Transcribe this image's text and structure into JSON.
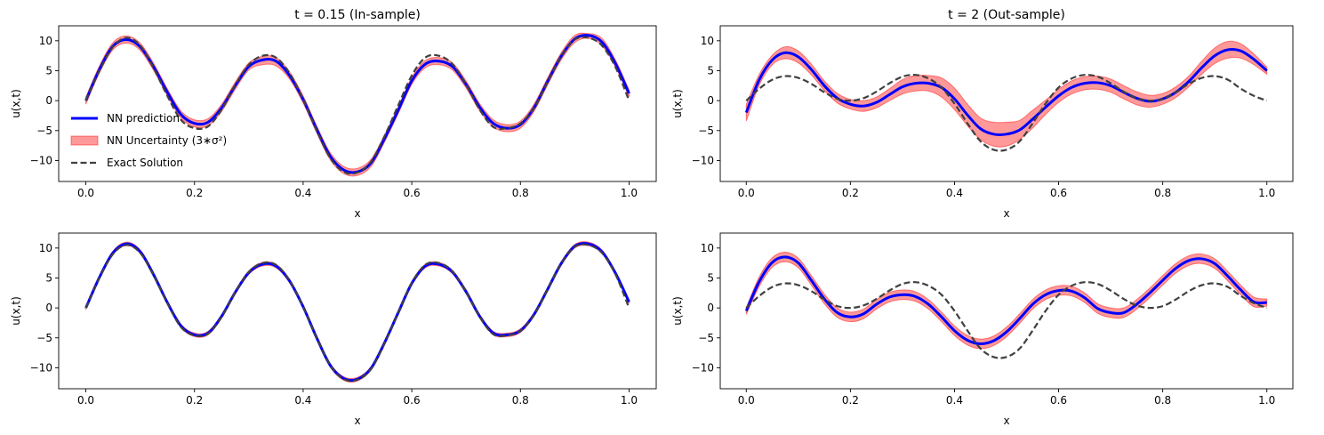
{
  "chart_data": [
    {
      "type": "line",
      "title": "t = 0.15 (In-sample)",
      "xlabel": "x",
      "ylabel": "u(x,t)",
      "xlim": [
        -0.05,
        1.05
      ],
      "ylim": [
        -13.5,
        12.5
      ],
      "xticks": [
        "0.0",
        "0.2",
        "0.4",
        "0.6",
        "0.8",
        "1.0"
      ],
      "yticks": [
        "10",
        "5",
        "0",
        "−5",
        "−10"
      ],
      "legend": {
        "placement": "lower-left",
        "entries": [
          {
            "label": "NN prediction",
            "style": "line",
            "color": "#0000ff"
          },
          {
            "label": "NN Uncertainty ($3*\\sigma^2$)",
            "display": "NN Uncertainty (3∗σ²)",
            "style": "band",
            "color": "#ff0000"
          },
          {
            "label": "Exact Solution",
            "style": "dashed",
            "color": "#404040"
          }
        ]
      },
      "x": [
        0.0,
        0.025,
        0.05,
        0.075,
        0.1,
        0.125,
        0.15,
        0.175,
        0.2,
        0.225,
        0.25,
        0.275,
        0.3,
        0.325,
        0.35,
        0.375,
        0.4,
        0.425,
        0.45,
        0.475,
        0.5,
        0.525,
        0.55,
        0.575,
        0.6,
        0.625,
        0.65,
        0.675,
        0.7,
        0.725,
        0.75,
        0.775,
        0.8,
        0.825,
        0.85,
        0.875,
        0.9,
        0.925,
        0.95,
        0.975,
        1.0
      ],
      "series": [
        {
          "name": "NN prediction",
          "kind": "line",
          "color": "#0000ff",
          "values": [
            0.0,
            5.2,
            9.1,
            10.2,
            9.0,
            5.6,
            1.4,
            -2.3,
            -3.8,
            -3.6,
            -1.2,
            2.5,
            5.7,
            6.8,
            6.6,
            4.2,
            0.2,
            -4.8,
            -9.3,
            -11.6,
            -11.9,
            -10.4,
            -6.3,
            -1.6,
            3.3,
            6.1,
            6.6,
            5.7,
            2.7,
            -1.1,
            -3.8,
            -4.6,
            -4.0,
            -1.2,
            3.2,
            7.4,
            10.3,
            10.9,
            9.8,
            6.2,
            1.2
          ]
        },
        {
          "name": "NN Uncertainty ($3*\\sigma^2$)",
          "kind": "band",
          "color": "#ff0000",
          "lower": [
            -0.6,
            4.6,
            8.5,
            9.6,
            8.4,
            5.0,
            0.8,
            -2.9,
            -4.4,
            -4.2,
            -1.8,
            1.9,
            5.1,
            6.0,
            5.8,
            3.6,
            -0.4,
            -5.4,
            -9.9,
            -12.2,
            -12.5,
            -11.0,
            -6.9,
            -2.2,
            2.7,
            5.5,
            6.0,
            5.1,
            2.1,
            -1.7,
            -4.4,
            -5.2,
            -4.6,
            -1.8,
            2.6,
            6.8,
            9.7,
            10.4,
            9.2,
            5.6,
            0.6
          ],
          "upper": [
            0.6,
            5.8,
            9.7,
            10.8,
            9.6,
            6.2,
            2.0,
            -1.7,
            -3.2,
            -3.0,
            -0.6,
            3.1,
            6.3,
            7.4,
            7.2,
            4.8,
            0.8,
            -4.2,
            -8.7,
            -11.0,
            -11.3,
            -9.8,
            -5.7,
            -1.0,
            3.9,
            6.7,
            7.2,
            6.3,
            3.3,
            -0.5,
            -3.2,
            -4.0,
            -3.4,
            -0.6,
            3.8,
            8.0,
            10.9,
            11.2,
            10.4,
            6.8,
            1.8
          ]
        },
        {
          "name": "Exact Solution",
          "kind": "dashed",
          "color": "#404040",
          "values": [
            0.0,
            5.0,
            9.0,
            10.5,
            9.2,
            5.4,
            0.8,
            -3.2,
            -4.6,
            -4.3,
            -1.5,
            2.6,
            6.0,
            7.5,
            7.2,
            4.6,
            0.2,
            -5.0,
            -9.6,
            -11.9,
            -12.0,
            -10.2,
            -5.9,
            -0.8,
            4.2,
            7.2,
            7.5,
            6.1,
            2.7,
            -1.5,
            -4.4,
            -4.6,
            -3.8,
            -1.2,
            3.1,
            7.4,
            10.2,
            10.5,
            9.2,
            5.6,
            0.0
          ]
        }
      ]
    },
    {
      "type": "line",
      "title": "t = 2 (Out-sample)",
      "xlabel": "x",
      "ylabel": "u(x,t)",
      "xlim": [
        -0.05,
        1.05
      ],
      "ylim": [
        -13.5,
        12.5
      ],
      "xticks": [
        "0.0",
        "0.2",
        "0.4",
        "0.6",
        "0.8",
        "1.0"
      ],
      "yticks": [
        "10",
        "5",
        "0",
        "−5",
        "−10"
      ],
      "x": [
        0.0,
        0.025,
        0.05,
        0.075,
        0.1,
        0.125,
        0.15,
        0.175,
        0.2,
        0.225,
        0.25,
        0.275,
        0.3,
        0.325,
        0.35,
        0.375,
        0.4,
        0.425,
        0.45,
        0.475,
        0.5,
        0.525,
        0.55,
        0.575,
        0.6,
        0.625,
        0.65,
        0.675,
        0.7,
        0.725,
        0.75,
        0.775,
        0.8,
        0.825,
        0.85,
        0.875,
        0.9,
        0.925,
        0.95,
        0.975,
        1.0
      ],
      "series": [
        {
          "name": "NN prediction",
          "kind": "line",
          "color": "#0000ff",
          "values": [
            -2.0,
            3.5,
            6.8,
            8.0,
            7.3,
            5.2,
            2.5,
            0.4,
            -0.6,
            -0.9,
            -0.3,
            1.0,
            2.3,
            2.9,
            2.9,
            2.2,
            0.3,
            -2.4,
            -4.7,
            -5.6,
            -5.6,
            -4.9,
            -3.1,
            -1.1,
            0.8,
            2.2,
            2.9,
            3.0,
            2.5,
            1.4,
            0.4,
            -0.1,
            0.3,
            1.4,
            3.2,
            5.5,
            7.5,
            8.5,
            8.3,
            6.9,
            5.0
          ]
        },
        {
          "name": "NN Uncertainty ($3*\\sigma^2$)",
          "kind": "band",
          "color": "#ff0000",
          "lower": [
            -3.4,
            2.6,
            6.0,
            7.0,
            6.3,
            4.3,
            1.7,
            -0.4,
            -1.4,
            -1.8,
            -1.2,
            0.0,
            1.1,
            1.6,
            1.6,
            0.6,
            -1.5,
            -4.2,
            -6.5,
            -7.6,
            -7.6,
            -6.5,
            -4.6,
            -2.3,
            -0.3,
            1.1,
            1.8,
            1.9,
            1.4,
            0.3,
            -0.7,
            -1.1,
            -0.6,
            0.5,
            2.3,
            4.4,
            6.2,
            7.1,
            7.1,
            6.0,
            4.4
          ],
          "upper": [
            -0.6,
            4.4,
            7.6,
            9.0,
            8.3,
            6.1,
            3.3,
            1.2,
            0.2,
            0.0,
            0.6,
            2.0,
            3.5,
            4.2,
            4.2,
            3.8,
            2.1,
            -0.6,
            -2.9,
            -3.6,
            -3.6,
            -3.3,
            -1.6,
            0.1,
            1.9,
            3.3,
            4.0,
            4.1,
            3.6,
            2.5,
            1.5,
            0.9,
            1.2,
            2.3,
            4.1,
            6.6,
            8.8,
            9.9,
            9.5,
            7.8,
            5.6
          ]
        },
        {
          "name": "Exact Solution",
          "kind": "dashed",
          "color": "#404040",
          "values": [
            0.0,
            2.0,
            3.5,
            4.1,
            3.8,
            2.8,
            1.4,
            0.3,
            0.0,
            0.4,
            1.5,
            2.9,
            4.0,
            4.3,
            3.7,
            2.2,
            -0.5,
            -3.8,
            -6.8,
            -8.2,
            -8.2,
            -6.8,
            -3.8,
            -0.5,
            2.2,
            3.7,
            4.3,
            4.0,
            2.9,
            1.5,
            0.4,
            0.0,
            0.3,
            1.4,
            2.8,
            3.8,
            4.1,
            3.5,
            2.0,
            0.8,
            0.0
          ]
        }
      ]
    },
    {
      "type": "line",
      "title": "",
      "xlabel": "x",
      "ylabel": "u(x,t)",
      "xlim": [
        -0.05,
        1.05
      ],
      "ylim": [
        -13.5,
        12.5
      ],
      "xticks": [
        "0.0",
        "0.2",
        "0.4",
        "0.6",
        "0.8",
        "1.0"
      ],
      "yticks": [
        "10",
        "5",
        "0",
        "−5",
        "−10"
      ],
      "x": [
        0.0,
        0.025,
        0.05,
        0.075,
        0.1,
        0.125,
        0.15,
        0.175,
        0.2,
        0.225,
        0.25,
        0.275,
        0.3,
        0.325,
        0.35,
        0.375,
        0.4,
        0.425,
        0.45,
        0.475,
        0.5,
        0.525,
        0.55,
        0.575,
        0.6,
        0.625,
        0.65,
        0.675,
        0.7,
        0.725,
        0.75,
        0.775,
        0.8,
        0.825,
        0.85,
        0.875,
        0.9,
        0.925,
        0.95,
        0.975,
        1.0
      ],
      "series": [
        {
          "name": "NN prediction",
          "kind": "line",
          "color": "#0000ff",
          "values": [
            0.0,
            5.1,
            9.2,
            10.7,
            9.4,
            5.5,
            0.9,
            -3.0,
            -4.5,
            -4.2,
            -1.4,
            2.6,
            5.9,
            7.3,
            7.0,
            4.5,
            0.2,
            -5.0,
            -9.6,
            -11.8,
            -11.9,
            -10.1,
            -5.8,
            -0.8,
            4.1,
            7.0,
            7.3,
            6.0,
            2.7,
            -1.4,
            -4.2,
            -4.5,
            -3.8,
            -1.1,
            3.1,
            7.4,
            10.3,
            10.7,
            9.4,
            5.8,
            1.0
          ]
        },
        {
          "name": "NN Uncertainty ($3*\\sigma^2$)",
          "kind": "band",
          "color": "#ff0000",
          "lower": [
            -0.3,
            4.8,
            8.9,
            10.4,
            9.1,
            5.2,
            0.6,
            -3.3,
            -4.8,
            -4.5,
            -1.7,
            2.3,
            5.6,
            7.0,
            6.7,
            4.2,
            -0.1,
            -5.3,
            -9.9,
            -12.1,
            -12.2,
            -10.4,
            -6.1,
            -1.1,
            3.8,
            6.7,
            7.0,
            5.7,
            2.4,
            -1.7,
            -4.5,
            -4.8,
            -4.1,
            -1.4,
            2.8,
            7.1,
            10.0,
            10.4,
            9.1,
            5.5,
            0.7
          ],
          "upper": [
            0.3,
            5.4,
            9.5,
            11.0,
            9.7,
            5.8,
            1.2,
            -2.7,
            -4.2,
            -3.9,
            -1.1,
            2.9,
            6.2,
            7.6,
            7.3,
            4.8,
            0.5,
            -4.7,
            -9.3,
            -11.5,
            -11.6,
            -9.8,
            -5.5,
            -0.5,
            4.4,
            7.3,
            7.6,
            6.3,
            3.0,
            -1.1,
            -3.9,
            -4.2,
            -3.5,
            -0.8,
            3.4,
            7.7,
            10.6,
            11.0,
            9.7,
            6.1,
            1.3
          ]
        },
        {
          "name": "Exact Solution",
          "kind": "dashed",
          "color": "#404040",
          "values": [
            0.0,
            5.0,
            9.0,
            10.5,
            9.2,
            5.4,
            0.8,
            -3.2,
            -4.6,
            -4.3,
            -1.5,
            2.6,
            6.0,
            7.5,
            7.2,
            4.6,
            0.2,
            -5.0,
            -9.6,
            -11.9,
            -12.0,
            -10.2,
            -5.9,
            -0.8,
            4.2,
            7.2,
            7.5,
            6.1,
            2.7,
            -1.5,
            -4.4,
            -4.6,
            -3.8,
            -1.2,
            3.1,
            7.4,
            10.2,
            10.5,
            9.2,
            5.6,
            0.0
          ]
        }
      ]
    },
    {
      "type": "line",
      "title": "",
      "xlabel": "x",
      "ylabel": "u(x,t)",
      "xlim": [
        -0.05,
        1.05
      ],
      "ylim": [
        -13.5,
        12.5
      ],
      "xticks": [
        "0.0",
        "0.2",
        "0.4",
        "0.6",
        "0.8",
        "1.0"
      ],
      "yticks": [
        "10",
        "5",
        "0",
        "−5",
        "−10"
      ],
      "x": [
        0.0,
        0.025,
        0.05,
        0.075,
        0.1,
        0.125,
        0.15,
        0.175,
        0.2,
        0.225,
        0.25,
        0.275,
        0.3,
        0.325,
        0.35,
        0.375,
        0.4,
        0.425,
        0.45,
        0.475,
        0.5,
        0.525,
        0.55,
        0.575,
        0.6,
        0.625,
        0.65,
        0.675,
        0.7,
        0.725,
        0.75,
        0.775,
        0.8,
        0.825,
        0.85,
        0.875,
        0.9,
        0.925,
        0.95,
        0.975,
        1.0
      ],
      "series": [
        {
          "name": "NN prediction",
          "kind": "line",
          "color": "#0000ff",
          "values": [
            -0.5,
            4.4,
            7.6,
            8.5,
            7.5,
            4.6,
            1.5,
            -0.8,
            -1.5,
            -1.0,
            0.6,
            1.8,
            2.2,
            1.9,
            0.6,
            -1.5,
            -3.8,
            -5.4,
            -6.0,
            -5.5,
            -4.0,
            -1.8,
            0.6,
            2.2,
            2.9,
            2.8,
            1.7,
            -0.1,
            -0.8,
            -0.8,
            0.6,
            2.5,
            4.6,
            6.6,
            7.9,
            8.2,
            7.4,
            5.3,
            3.0,
            1.0,
            0.9
          ]
        },
        {
          "name": "NN Uncertainty ($3*\\sigma^2$)",
          "kind": "band",
          "color": "#ff0000",
          "lower": [
            -1.1,
            3.6,
            6.8,
            7.7,
            6.7,
            3.8,
            0.7,
            -1.6,
            -2.3,
            -1.8,
            -0.2,
            1.0,
            1.4,
            1.1,
            -0.2,
            -2.3,
            -4.6,
            -6.2,
            -6.8,
            -6.3,
            -4.8,
            -2.6,
            -0.2,
            1.4,
            2.1,
            2.0,
            0.9,
            -0.9,
            -1.6,
            -1.6,
            -0.2,
            1.7,
            3.8,
            5.8,
            7.1,
            7.4,
            6.6,
            4.5,
            2.2,
            0.2,
            0.3
          ],
          "upper": [
            0.1,
            5.2,
            8.4,
            9.3,
            8.3,
            5.4,
            2.3,
            0.0,
            -0.7,
            -0.2,
            1.4,
            2.6,
            3.0,
            2.7,
            1.4,
            -0.7,
            -3.0,
            -4.6,
            -5.2,
            -4.7,
            -3.2,
            -1.0,
            1.4,
            3.0,
            3.7,
            3.6,
            2.5,
            0.7,
            0.0,
            0.0,
            1.4,
            3.3,
            5.4,
            7.4,
            8.7,
            9.0,
            8.2,
            6.1,
            3.8,
            1.8,
            1.5
          ]
        },
        {
          "name": "Exact Solution",
          "kind": "dashed",
          "color": "#404040",
          "values": [
            0.0,
            2.0,
            3.5,
            4.1,
            3.8,
            2.8,
            1.4,
            0.3,
            0.0,
            0.4,
            1.5,
            2.9,
            4.0,
            4.3,
            3.7,
            2.2,
            -0.5,
            -3.8,
            -6.8,
            -8.2,
            -8.2,
            -6.8,
            -3.8,
            -0.5,
            2.2,
            3.7,
            4.3,
            4.0,
            2.9,
            1.5,
            0.4,
            0.0,
            0.3,
            1.4,
            2.8,
            3.8,
            4.1,
            3.5,
            2.0,
            0.8,
            0.0
          ]
        }
      ]
    }
  ]
}
